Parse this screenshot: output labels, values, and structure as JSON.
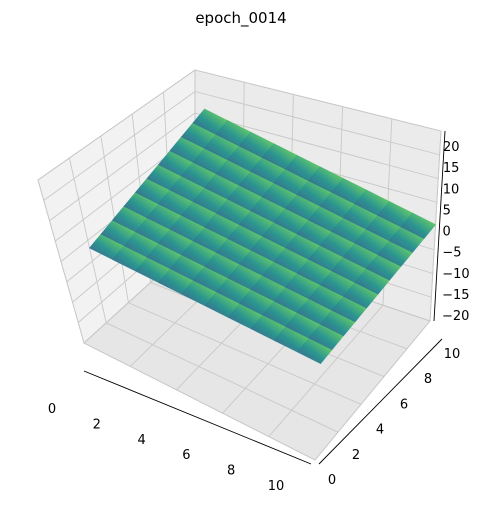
{
  "chart_data": {
    "type": "surface",
    "title": "epoch_0014",
    "xlabel": "",
    "ylabel": "",
    "zlabel": "",
    "x_ticks": [
      "0",
      "2",
      "4",
      "6",
      "8",
      "10"
    ],
    "y_ticks": [
      "0",
      "2",
      "4",
      "6",
      "8",
      "10"
    ],
    "z_ticks": [
      "-20",
      "-15",
      "-10",
      "-5",
      "0",
      "5",
      "10",
      "15",
      "20"
    ],
    "xlim": [
      0,
      10
    ],
    "ylim": [
      0,
      10
    ],
    "zlim": [
      -20,
      20
    ],
    "grid": true,
    "colormap": "viridis",
    "surface": {
      "x": [
        0,
        10
      ],
      "y": [
        0,
        10
      ],
      "z": [
        [
          0.0,
          0.0
        ],
        [
          0.3,
          0.3
        ]
      ]
    },
    "colors": {
      "pane": "#f2f2f2",
      "grid": "#c8c8c8",
      "edge": "#bcbcbc",
      "surface_low": "#3b528b",
      "surface_mid": "#21918c",
      "surface_high": "#5ec962",
      "surface_peak": "#fde725"
    }
  }
}
